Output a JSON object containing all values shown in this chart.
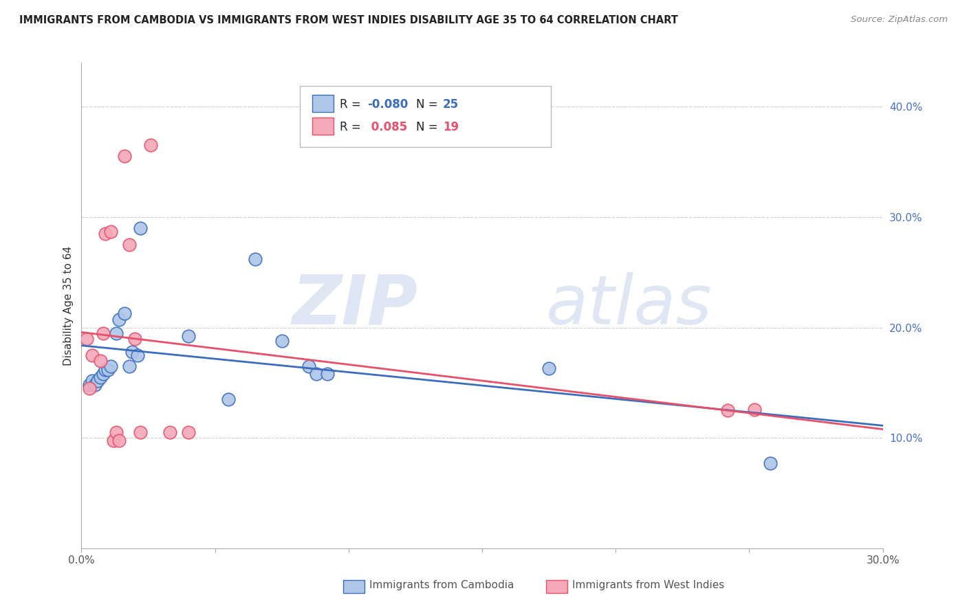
{
  "title": "IMMIGRANTS FROM CAMBODIA VS IMMIGRANTS FROM WEST INDIES DISABILITY AGE 35 TO 64 CORRELATION CHART",
  "source": "Source: ZipAtlas.com",
  "ylabel": "Disability Age 35 to 64",
  "xlabel": "",
  "xlim": [
    0.0,
    0.3
  ],
  "ylim": [
    0.0,
    0.44
  ],
  "yticks": [
    0.1,
    0.2,
    0.3,
    0.4
  ],
  "ytick_labels": [
    "10.0%",
    "20.0%",
    "30.0%",
    "40.0%"
  ],
  "xticks": [
    0.0,
    0.05,
    0.1,
    0.15,
    0.2,
    0.25,
    0.3
  ],
  "xtick_labels": [
    "0.0%",
    "",
    "",
    "",
    "",
    "",
    "30.0%"
  ],
  "cambodia_color": "#aec6e8",
  "westindies_color": "#f4a8b8",
  "cambodia_line_color": "#3a6ebd",
  "westindies_line_color": "#e8506a",
  "legend_R_cambodia": "-0.080",
  "legend_N_cambodia": "25",
  "legend_R_westindies": "0.085",
  "legend_N_westindies": "19",
  "cambodia_x": [
    0.003,
    0.004,
    0.005,
    0.006,
    0.007,
    0.008,
    0.009,
    0.01,
    0.011,
    0.013,
    0.014,
    0.016,
    0.018,
    0.019,
    0.021,
    0.022,
    0.04,
    0.055,
    0.065,
    0.075,
    0.085,
    0.088,
    0.092,
    0.175,
    0.258
  ],
  "cambodia_y": [
    0.148,
    0.152,
    0.148,
    0.152,
    0.155,
    0.158,
    0.162,
    0.162,
    0.165,
    0.195,
    0.207,
    0.213,
    0.165,
    0.178,
    0.175,
    0.29,
    0.192,
    0.135,
    0.262,
    0.188,
    0.165,
    0.158,
    0.158,
    0.163,
    0.077
  ],
  "westindies_x": [
    0.002,
    0.003,
    0.004,
    0.007,
    0.008,
    0.009,
    0.011,
    0.012,
    0.013,
    0.014,
    0.016,
    0.018,
    0.02,
    0.022,
    0.026,
    0.033,
    0.04,
    0.242,
    0.252
  ],
  "westindies_y": [
    0.19,
    0.145,
    0.175,
    0.17,
    0.195,
    0.285,
    0.287,
    0.098,
    0.105,
    0.098,
    0.355,
    0.275,
    0.19,
    0.105,
    0.365,
    0.105,
    0.105,
    0.125,
    0.126
  ],
  "watermark_zip": "ZIP",
  "watermark_atlas": "atlas",
  "background_color": "#ffffff",
  "grid_color": "#d0d0d0"
}
